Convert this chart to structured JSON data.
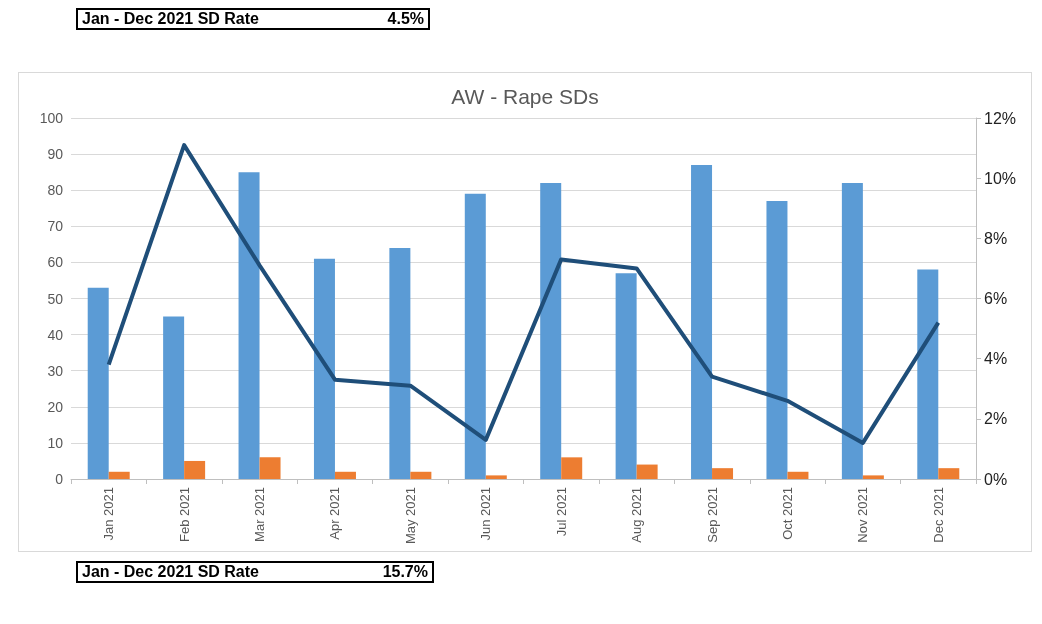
{
  "chart_data": {
    "type": "bar",
    "title": "AW - Rape SDs",
    "categories": [
      "Jan 2021",
      "Feb 2021",
      "Mar 2021",
      "Apr 2021",
      "May 2021",
      "Jun 2021",
      "Jul 2021",
      "Aug 2021",
      "Sep 2021",
      "Oct 2021",
      "Nov 2021",
      "Dec 2021"
    ],
    "series": [
      {
        "color": "#5b9bd5",
        "values": [
          53,
          45,
          85,
          61,
          64,
          79,
          82,
          57,
          87,
          77,
          82,
          58
        ]
      },
      {
        "color": "#ed7d31",
        "values": [
          2,
          5,
          6,
          2,
          2,
          1,
          6,
          4,
          3,
          2,
          1,
          3
        ]
      },
      {
        "type": "line",
        "axis": "y2",
        "color": "#1f4e79",
        "values": [
          3.8,
          11.1,
          7.1,
          3.3,
          3.1,
          1.3,
          7.3,
          7.0,
          3.4,
          2.6,
          1.2,
          5.2
        ]
      }
    ],
    "ylim": [
      0,
      100
    ],
    "yticks": [
      0,
      10,
      20,
      30,
      40,
      50,
      60,
      70,
      80,
      90,
      100
    ],
    "y2lim": [
      0,
      12
    ],
    "y2ticks": [
      {
        "value": 0,
        "label": "0%"
      },
      {
        "value": 2,
        "label": "2%"
      },
      {
        "value": 4,
        "label": "4%"
      },
      {
        "value": 6,
        "label": "6%"
      },
      {
        "value": 8,
        "label": "8%"
      },
      {
        "value": 10,
        "label": "10%"
      },
      {
        "value": 12,
        "label": "12%"
      }
    ],
    "grid": "y",
    "marker": "none",
    "line_style": "solid",
    "annotations": [
      "Jan - Dec 2021 SD Rate",
      "4.5%",
      "Jan - Dec 2021 SD Rate",
      "15.7%"
    ]
  }
}
